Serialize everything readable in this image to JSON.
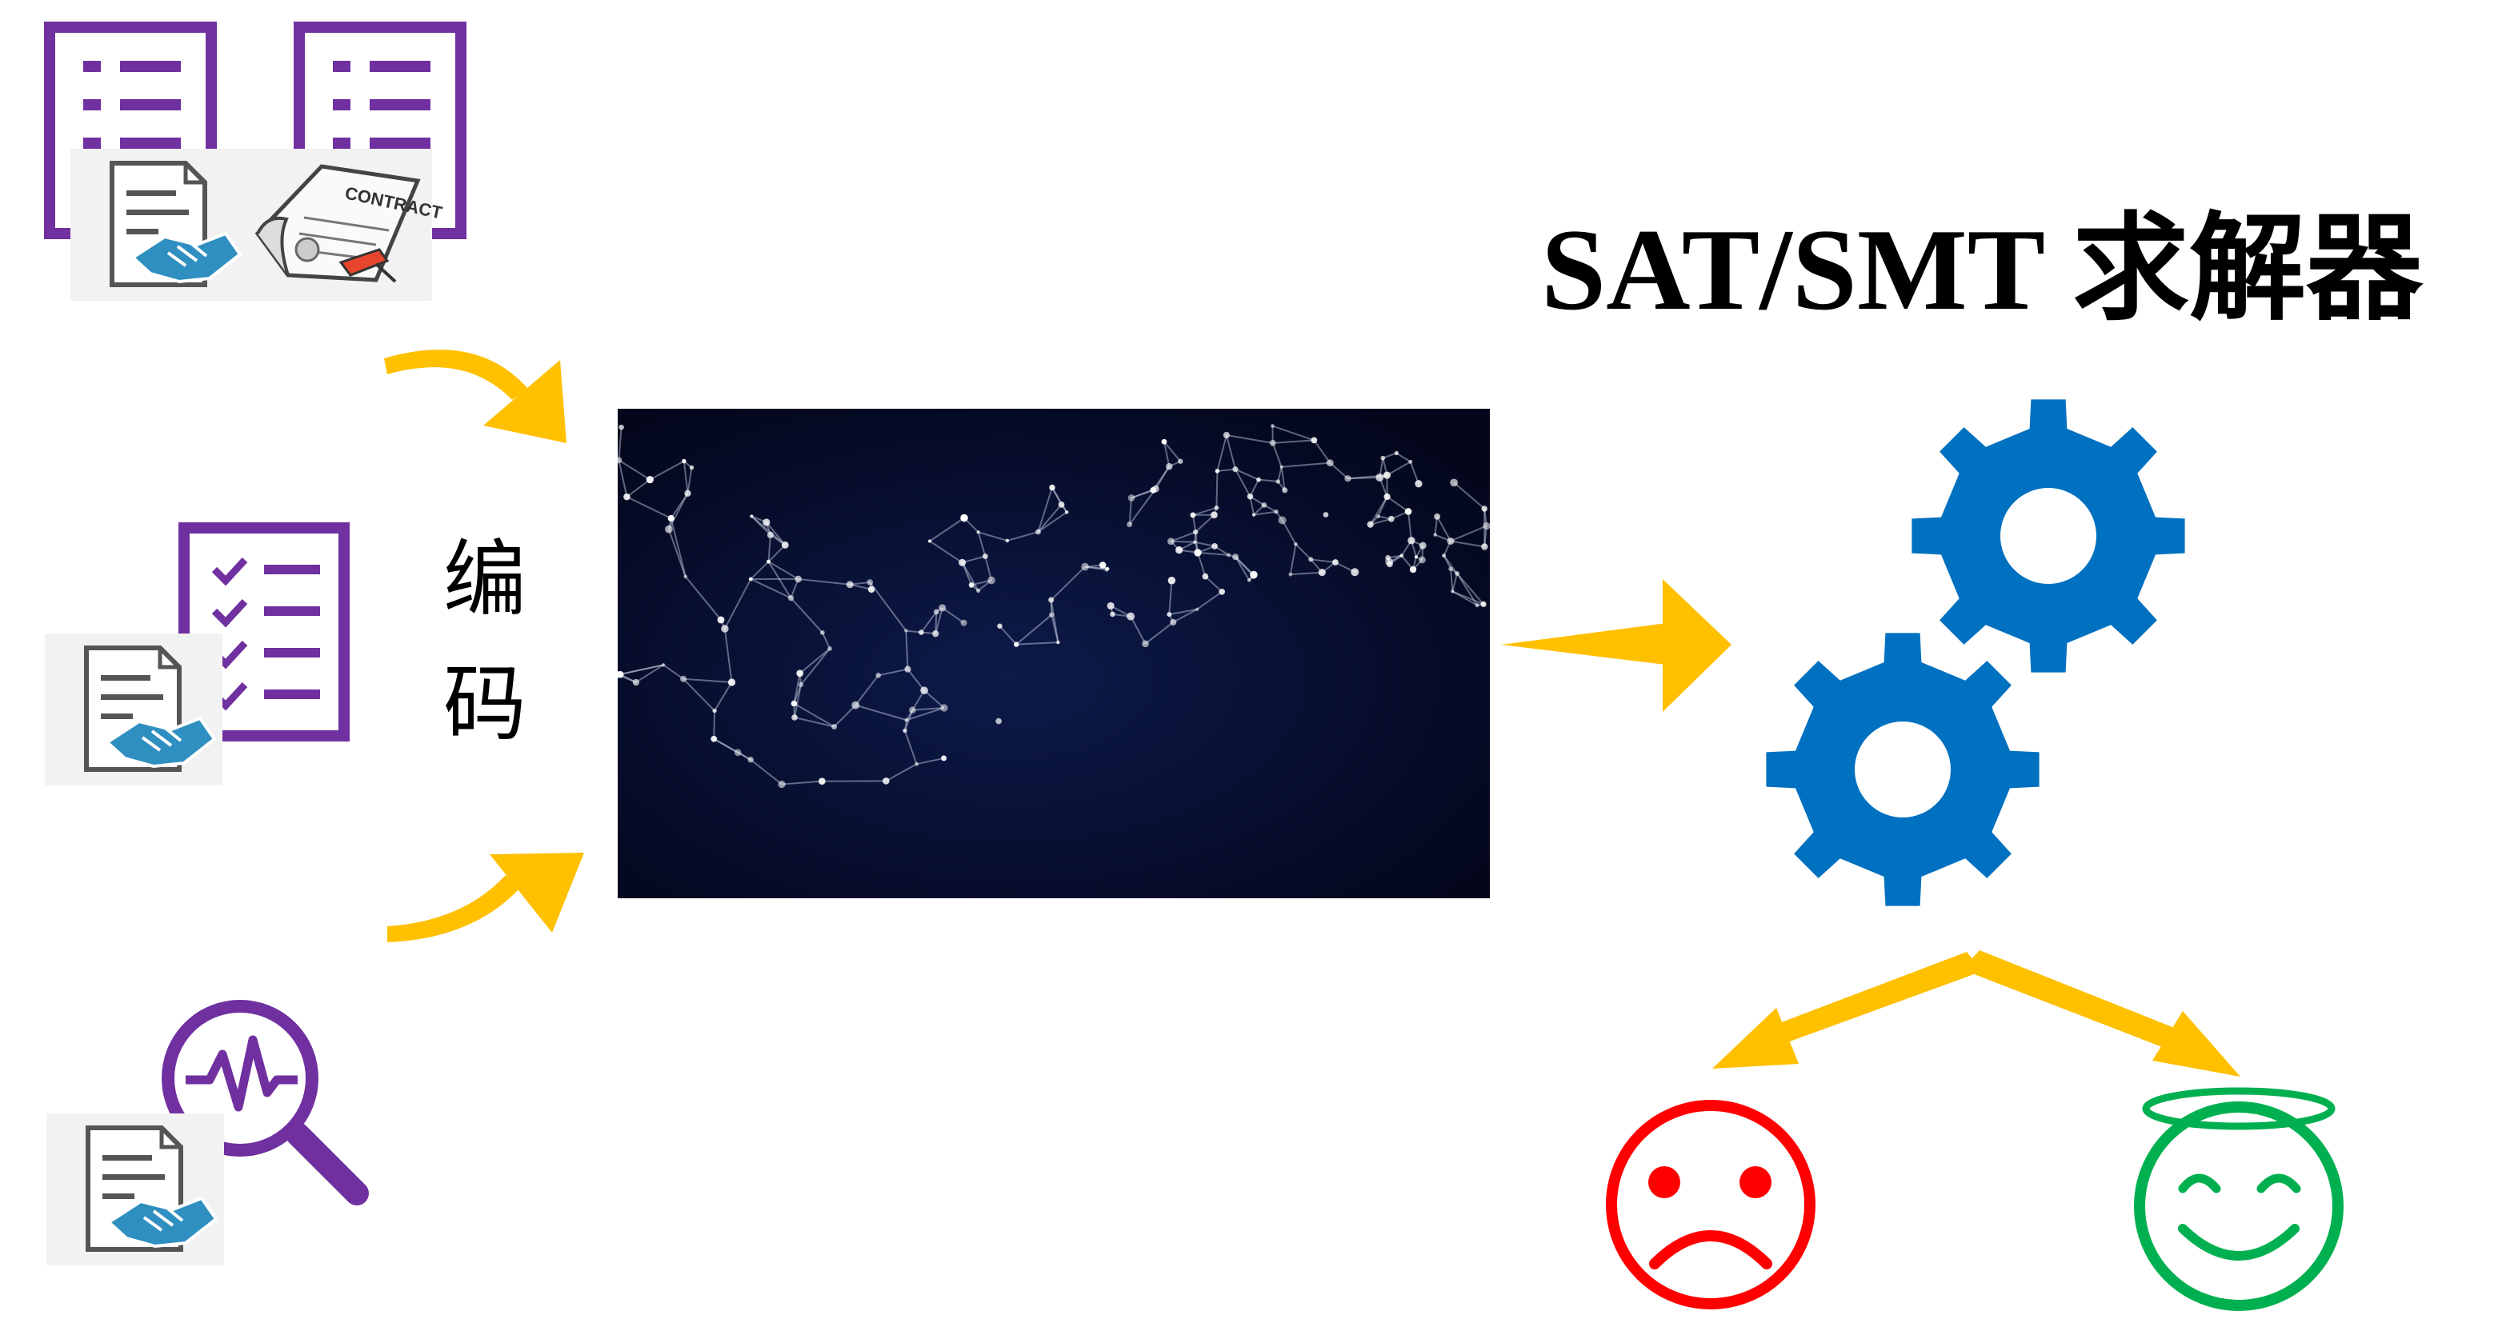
{
  "title": "SAT/SMT 求解器",
  "encode_label_line1": "编",
  "encode_label_line2": "码",
  "contract_label": "CONTRACT",
  "colors": {
    "purple": "#7030A0",
    "arrow_yellow": "#FFC000",
    "gear_blue": "#0070C0",
    "sad_red": "#FF0000",
    "happy_green": "#00B050",
    "network_bg": "#050a24",
    "handshake_blue": "#2E8FC0"
  },
  "icons": {
    "doc_list_1": "document-list-icon",
    "doc_list_2": "document-list-icon",
    "checklist": "checklist-icon",
    "search_wave": "search-waveform-icon",
    "agreement_1": "agreement-handshake-icon",
    "contract_scroll": "contract-scroll-icon",
    "agreement_2": "agreement-handshake-icon",
    "agreement_3": "agreement-handshake-icon",
    "network": "neural-network-image",
    "gears": "gears-icon",
    "sad": "sad-face-icon",
    "happy": "happy-angel-face-icon"
  }
}
